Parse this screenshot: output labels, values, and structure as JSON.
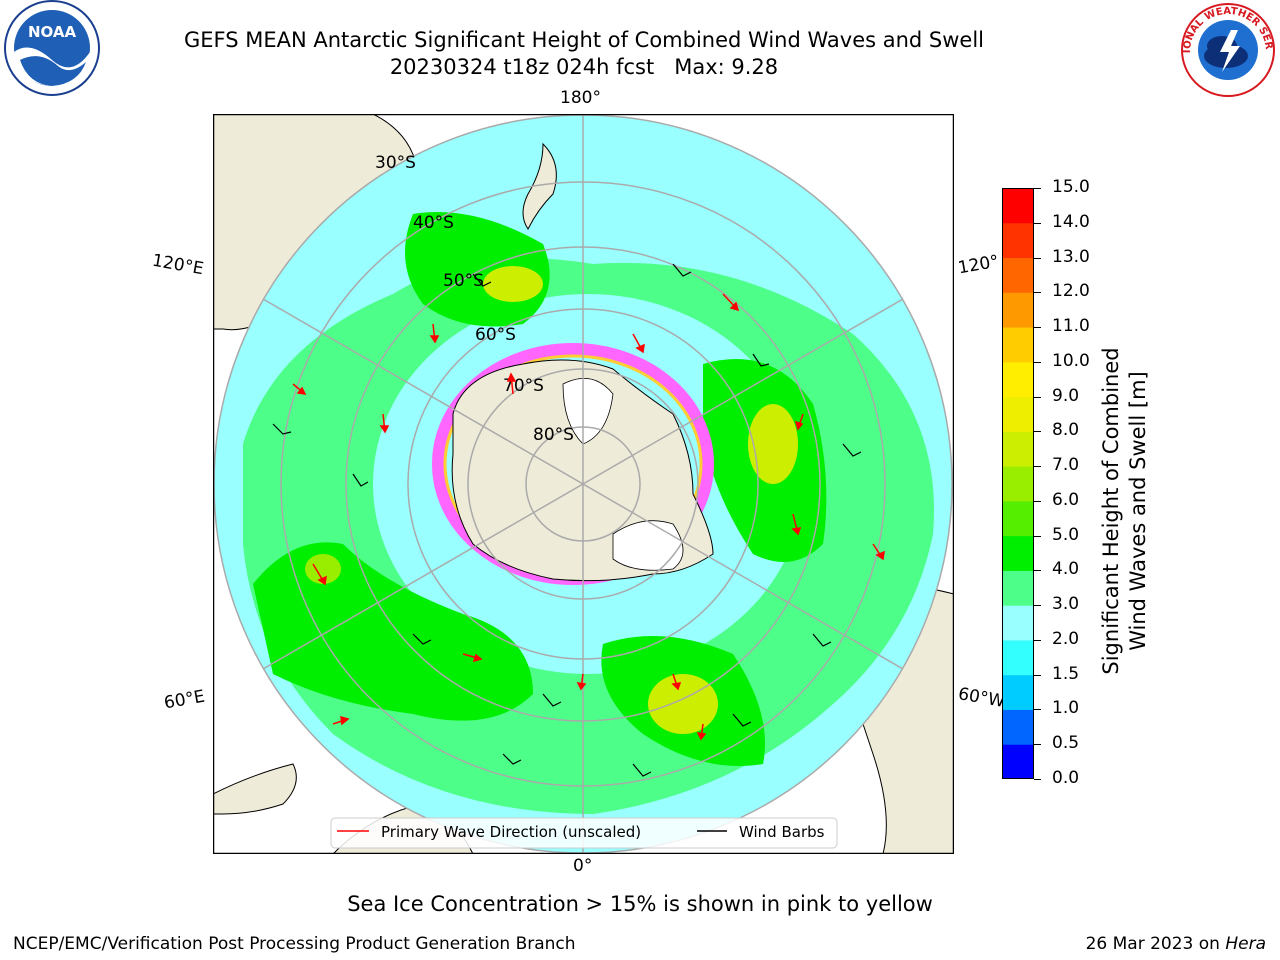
{
  "title": {
    "line1": "GEFS MEAN Antarctic Significant Height of Combined Wind Waves and Swell",
    "line2": "20230324 t18z 024h fcst   Max: 9.28"
  },
  "logos": {
    "left": "NOAA",
    "right": "NATIONAL WEATHER SERVICE"
  },
  "map": {
    "projection": "south-polar-stereographic",
    "lon_labels": {
      "top": "180°",
      "bottom": "0°",
      "upper_left": "120°E",
      "lower_left": "60°E",
      "upper_right": "120°",
      "lower_right": "60°W"
    },
    "lat_labels": [
      "30°S",
      "40°S",
      "50°S",
      "60°S",
      "70°S",
      "80°S"
    ],
    "land_color": "#efebd9",
    "sea_ice_colors": [
      "#ff66ff",
      "#ffcc33"
    ]
  },
  "legend": {
    "primary_wave": "Primary Wave Direction (unscaled)",
    "wind_barbs": "Wind Barbs",
    "primary_wave_color": "#ff0000",
    "wind_barbs_color": "#000000"
  },
  "colorbar": {
    "label_line1": "Significant Height of Combined",
    "label_line2": "Wind Waves and Swell [m]",
    "ticks": [
      "0.0",
      "0.5",
      "1.0",
      "1.5",
      "2.0",
      "3.0",
      "4.0",
      "5.0",
      "6.0",
      "7.0",
      "8.0",
      "9.0",
      "10.0",
      "11.0",
      "12.0",
      "13.0",
      "14.0",
      "15.0"
    ],
    "colors": [
      "#0000ff",
      "#0066ff",
      "#00ccff",
      "#33ffff",
      "#99ffff",
      "#4dff88",
      "#00ee00",
      "#55ee00",
      "#99ee00",
      "#ccee00",
      "#eeee00",
      "#ffee00",
      "#ffcc00",
      "#ff9900",
      "#ff6600",
      "#ff3300",
      "#ff0000"
    ]
  },
  "footer": {
    "note": "Sea Ice Concentration > 15% is shown in pink to yellow",
    "credit": "NCEP/EMC/Verification Post Processing Product Generation Branch",
    "date": "26 Mar 2023 on ",
    "machine": "Hera"
  }
}
